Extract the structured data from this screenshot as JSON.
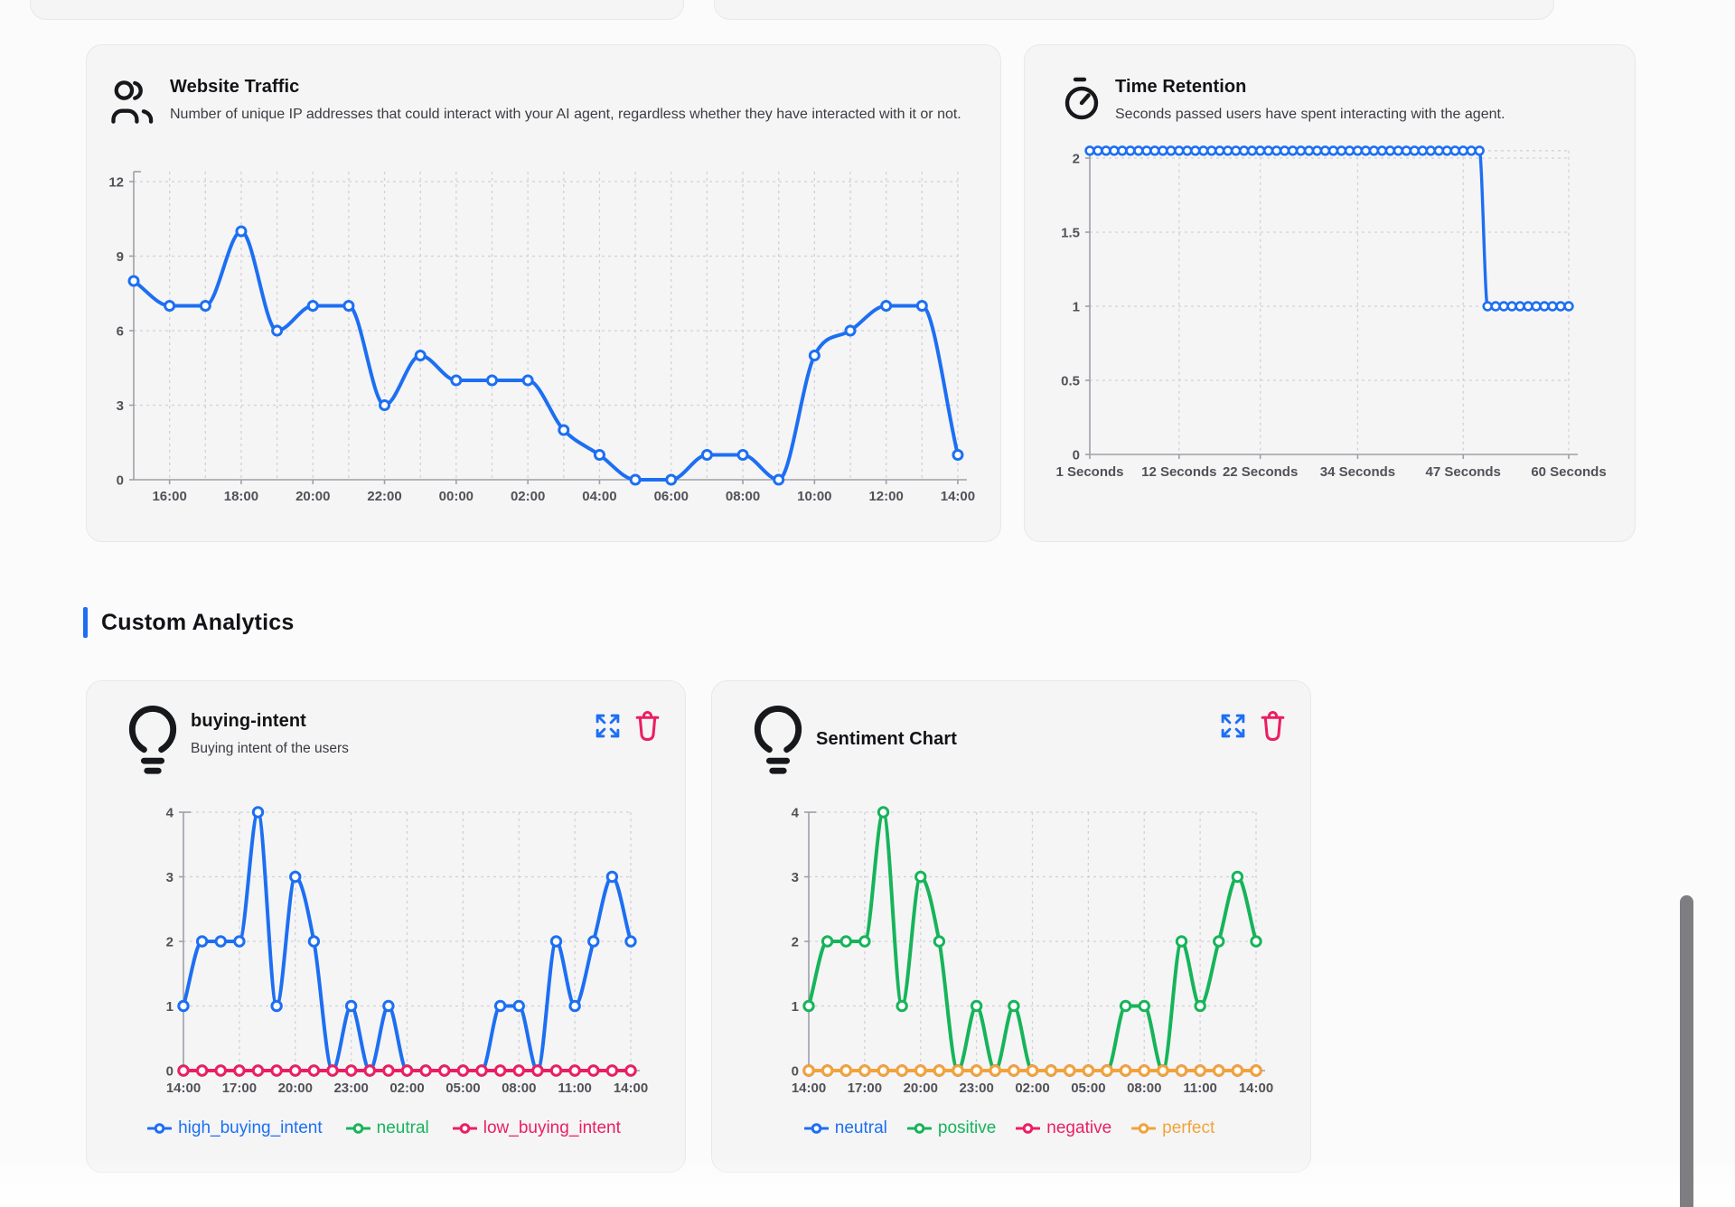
{
  "section": {
    "title": "Custom Analytics"
  },
  "colors": {
    "blue": "#1d6ff2",
    "green": "#17b45a",
    "pink": "#ec1e63",
    "orange": "#f2a33a",
    "axis": "#9da0a6",
    "grid": "#d2d2d6",
    "tick_label": "#515158",
    "accent_bar": "#1d6ff2",
    "trash": "#ec1e63",
    "card_bg": "#f5f5f6",
    "scrollbar": "#7e7e82"
  },
  "cards": {
    "website_traffic": {
      "title": "Website Traffic",
      "description": "Number of unique IP addresses that could interact with your AI agent, regardless whether they have interacted with it or not.",
      "icon": "users-icon",
      "chart_data": {
        "type": "line",
        "categories": [
          "15:00",
          "16:00",
          "17:00",
          "18:00",
          "19:00",
          "20:00",
          "21:00",
          "22:00",
          "23:00",
          "00:00",
          "01:00",
          "02:00",
          "03:00",
          "04:00",
          "05:00",
          "06:00",
          "07:00",
          "08:00",
          "09:00",
          "10:00",
          "11:00",
          "12:00",
          "13:00",
          "14:00"
        ],
        "values": [
          8,
          7,
          7,
          10,
          6,
          7,
          7,
          3,
          5,
          4,
          4,
          4,
          2,
          1,
          0,
          0,
          1,
          1,
          0,
          5,
          6,
          7,
          7,
          1
        ],
        "x_tick_indices": [
          1,
          3,
          5,
          7,
          9,
          11,
          13,
          15,
          17,
          19,
          21,
          23
        ],
        "x_tick_labels": [
          "16:00",
          "18:00",
          "20:00",
          "22:00",
          "00:00",
          "02:00",
          "04:00",
          "06:00",
          "08:00",
          "10:00",
          "12:00",
          "14:00"
        ],
        "yticks": [
          0,
          3,
          6,
          9,
          12
        ],
        "ylim": [
          0,
          12
        ],
        "grid": "dashed",
        "line_color": "#1d6ff2"
      }
    },
    "time_retention": {
      "title": "Time Retention",
      "description": "Seconds passed users have spent interacting with the agent.",
      "icon": "stopwatch-icon",
      "chart_data": {
        "type": "line",
        "x_range_seconds": [
          1,
          60
        ],
        "values": [
          2.05,
          2.05,
          2.05,
          2.05,
          2.05,
          2.05,
          2.05,
          2.05,
          2.05,
          2.05,
          2.05,
          2.05,
          2.05,
          2.05,
          2.05,
          2.05,
          2.05,
          2.05,
          2.05,
          2.05,
          2.05,
          2.05,
          2.05,
          2.05,
          2.05,
          2.05,
          2.05,
          2.05,
          2.05,
          2.05,
          2.05,
          2.05,
          2.05,
          2.05,
          2.05,
          2.05,
          2.05,
          2.05,
          2.05,
          2.05,
          2.05,
          2.05,
          2.05,
          2.05,
          2.05,
          2.05,
          2.05,
          2.05,
          2.05,
          1,
          1,
          1,
          1,
          1,
          1,
          1,
          1,
          1,
          1,
          1
        ],
        "x_tick_seconds": [
          1,
          12,
          22,
          34,
          47,
          60
        ],
        "x_tick_labels": [
          "1 Seconds",
          "12 Seconds",
          "22 Seconds",
          "34 Seconds",
          "47 Seconds",
          "60 Seconds"
        ],
        "yticks": [
          0,
          0.5,
          1,
          1.5,
          2
        ],
        "ylim": [
          0,
          2.05
        ],
        "grid": "dashed",
        "line_color": "#1d6ff2"
      }
    }
  },
  "custom": {
    "buying_intent": {
      "title": "buying-intent",
      "subtitle": "Buying intent of the users",
      "icon": "lightbulb-icon",
      "actions": [
        "expand",
        "delete"
      ],
      "chart_data": {
        "type": "line",
        "categories": [
          "14:00",
          "15:00",
          "16:00",
          "17:00",
          "18:00",
          "19:00",
          "20:00",
          "21:00",
          "22:00",
          "23:00",
          "00:00",
          "01:00",
          "02:00",
          "03:00",
          "04:00",
          "05:00",
          "06:00",
          "07:00",
          "08:00",
          "09:00",
          "10:00",
          "11:00",
          "12:00",
          "13:00",
          "14:00"
        ],
        "x_tick_indices": [
          0,
          3,
          6,
          9,
          12,
          15,
          18,
          21,
          24
        ],
        "x_tick_labels": [
          "14:00",
          "17:00",
          "20:00",
          "23:00",
          "02:00",
          "05:00",
          "08:00",
          "11:00",
          "14:00"
        ],
        "yticks": [
          0,
          1,
          2,
          3,
          4
        ],
        "ylim": [
          0,
          4
        ],
        "grid": "dashed",
        "legend_position": "bottom",
        "series": [
          {
            "name": "high_buying_intent",
            "color": "#1d6ff2",
            "values": [
              1,
              2,
              2,
              2,
              4,
              1,
              3,
              2,
              0,
              1,
              0,
              1,
              0,
              0,
              0,
              0,
              0,
              1,
              1,
              0,
              2,
              1,
              2,
              3,
              2
            ]
          },
          {
            "name": "neutral",
            "color": "#17b45a",
            "values": [
              0,
              0,
              0,
              0,
              0,
              0,
              0,
              0,
              0,
              0,
              0,
              0,
              0,
              0,
              0,
              0,
              0,
              0,
              0,
              0,
              0,
              0,
              0,
              0,
              0
            ]
          },
          {
            "name": "low_buying_intent",
            "color": "#ec1e63",
            "values": [
              0,
              0,
              0,
              0,
              0,
              0,
              0,
              0,
              0,
              0,
              0,
              0,
              0,
              0,
              0,
              0,
              0,
              0,
              0,
              0,
              0,
              0,
              0,
              0,
              0
            ]
          }
        ]
      }
    },
    "sentiment": {
      "title": "Sentiment Chart",
      "icon": "lightbulb-icon",
      "actions": [
        "expand",
        "delete"
      ],
      "chart_data": {
        "type": "line",
        "categories": [
          "14:00",
          "15:00",
          "16:00",
          "17:00",
          "18:00",
          "19:00",
          "20:00",
          "21:00",
          "22:00",
          "23:00",
          "00:00",
          "01:00",
          "02:00",
          "03:00",
          "04:00",
          "05:00",
          "06:00",
          "07:00",
          "08:00",
          "09:00",
          "10:00",
          "11:00",
          "12:00",
          "13:00",
          "14:00"
        ],
        "x_tick_indices": [
          0,
          3,
          6,
          9,
          12,
          15,
          18,
          21,
          24
        ],
        "x_tick_labels": [
          "14:00",
          "17:00",
          "20:00",
          "23:00",
          "02:00",
          "05:00",
          "08:00",
          "11:00",
          "14:00"
        ],
        "yticks": [
          0,
          1,
          2,
          3,
          4
        ],
        "ylim": [
          0,
          4
        ],
        "grid": "dashed",
        "legend_position": "bottom",
        "series": [
          {
            "name": "neutral",
            "color": "#1d6ff2",
            "values": [
              0,
              0,
              0,
              0,
              0,
              0,
              0,
              0,
              0,
              0,
              0,
              0,
              0,
              0,
              0,
              0,
              0,
              0,
              0,
              0,
              0,
              0,
              0,
              0,
              0
            ]
          },
          {
            "name": "positive",
            "color": "#17b45a",
            "values": [
              1,
              2,
              2,
              2,
              4,
              1,
              3,
              2,
              0,
              1,
              0,
              1,
              0,
              0,
              0,
              0,
              0,
              1,
              1,
              0,
              2,
              1,
              2,
              3,
              2
            ]
          },
          {
            "name": "negative",
            "color": "#ec1e63",
            "values": [
              0,
              0,
              0,
              0,
              0,
              0,
              0,
              0,
              0,
              0,
              0,
              0,
              0,
              0,
              0,
              0,
              0,
              0,
              0,
              0,
              0,
              0,
              0,
              0,
              0
            ]
          },
          {
            "name": "perfect",
            "color": "#f2a33a",
            "values": [
              0,
              0,
              0,
              0,
              0,
              0,
              0,
              0,
              0,
              0,
              0,
              0,
              0,
              0,
              0,
              0,
              0,
              0,
              0,
              0,
              0,
              0,
              0,
              0,
              0
            ]
          }
        ]
      }
    }
  }
}
